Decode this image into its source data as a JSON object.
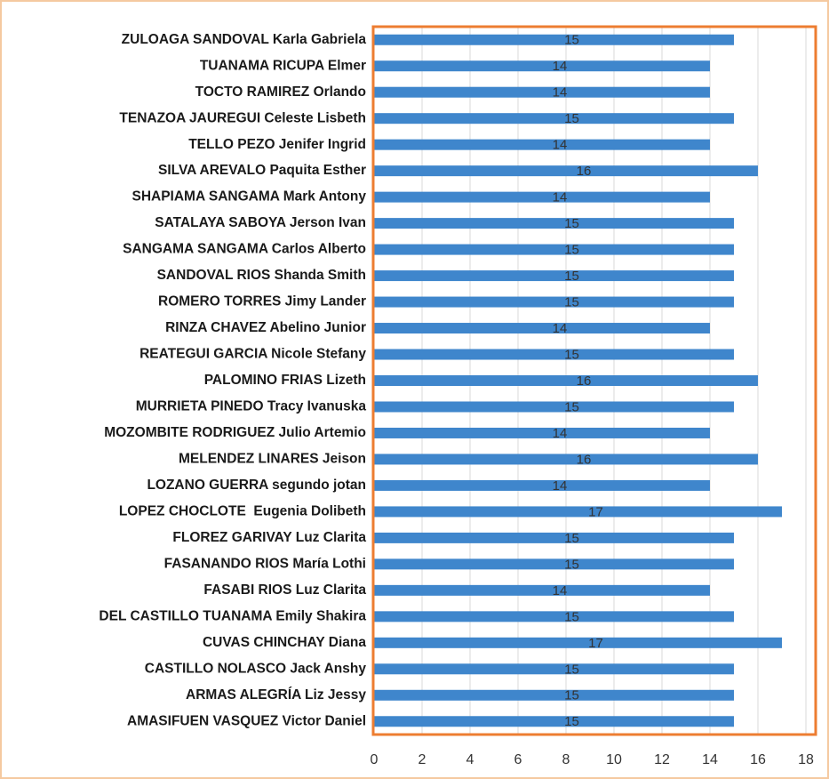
{
  "chart_data": {
    "type": "barh",
    "categories": [
      "ZULOAGA SANDOVAL Karla Gabriela",
      "TUANAMA RICUPA Elmer",
      "TOCTO RAMIREZ Orlando",
      "TENAZOA JAUREGUI Celeste Lisbeth",
      "TELLO PEZO Jenifer Ingrid",
      "SILVA AREVALO Paquita Esther",
      "SHAPIAMA SANGAMA Mark Antony",
      "SATALAYA SABOYA Jerson Ivan",
      "SANGAMA SANGAMA Carlos Alberto",
      "SANDOVAL RIOS Shanda Smith",
      "ROMERO TORRES Jimy Lander",
      "RINZA CHAVEZ Abelino Junior",
      "REATEGUI GARCIA Nicole Stefany",
      "PALOMINO FRIAS Lizeth",
      "MURRIETA PINEDO Tracy Ivanuska",
      "MOZOMBITE RODRIGUEZ Julio Artemio",
      "MELENDEZ LINARES Jeison",
      "LOZANO GUERRA segundo jotan",
      "LOPEZ CHOCLOTE  Eugenia Dolibeth",
      "FLOREZ GARIVAY Luz Clarita",
      "FASANANDO RIOS María Lothi",
      "FASABI RIOS Luz Clarita",
      "DEL CASTILLO TUANAMA Emily Shakira",
      "CUVAS CHINCHAY Diana",
      "CASTILLO NOLASCO Jack Anshy",
      "ARMAS ALEGRÍA Liz Jessy",
      "AMASIFUEN VASQUEZ Victor Daniel"
    ],
    "values": [
      15,
      14,
      14,
      15,
      14,
      16,
      14,
      15,
      15,
      15,
      15,
      14,
      15,
      16,
      15,
      14,
      16,
      14,
      17,
      15,
      15,
      14,
      15,
      17,
      15,
      15,
      15
    ],
    "color": "#3f86cc",
    "xlim": [
      0,
      18
    ],
    "xticks": [
      0,
      2,
      4,
      6,
      8,
      10,
      12,
      14,
      16,
      18
    ],
    "grid": true
  }
}
